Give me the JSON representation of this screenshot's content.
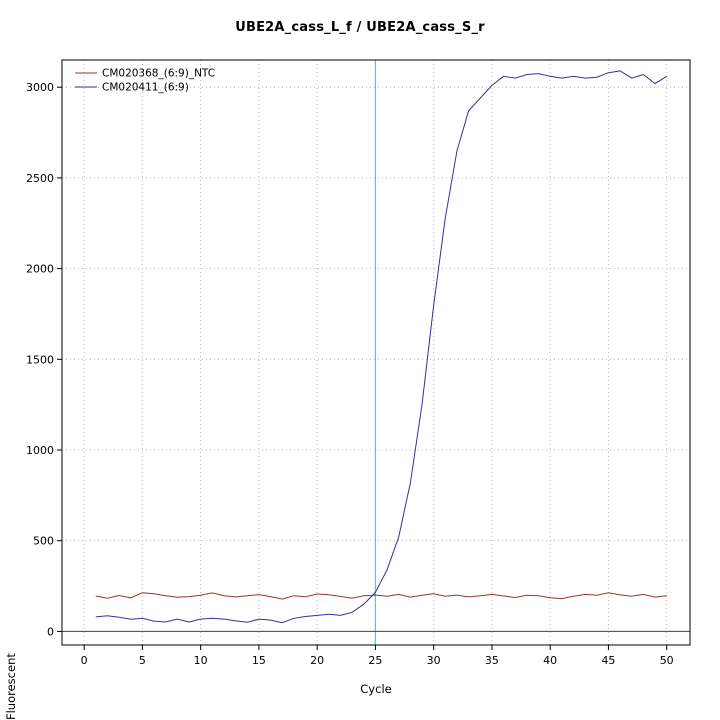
{
  "chart_data": {
    "type": "line",
    "title": "UBE2A_cass_L_f / UBE2A_cass_S_r",
    "xlabel": "Cycle",
    "ylabel": "Fluorescent",
    "grid": "dotted",
    "legend_position": "top-left",
    "xlim": [
      -1.9,
      52
    ],
    "ylim": [
      -75,
      3150
    ],
    "x_ticks": [
      0,
      5,
      10,
      15,
      20,
      25,
      30,
      35,
      40,
      45,
      50
    ],
    "y_ticks": [
      0,
      500,
      1000,
      1500,
      2000,
      2500,
      3000
    ],
    "x": [
      1,
      2,
      3,
      4,
      5,
      6,
      7,
      8,
      9,
      10,
      11,
      12,
      13,
      14,
      15,
      16,
      17,
      18,
      19,
      20,
      21,
      22,
      23,
      24,
      25,
      26,
      27,
      28,
      29,
      30,
      31,
      32,
      33,
      34,
      35,
      36,
      37,
      38,
      39,
      40,
      41,
      42,
      43,
      44,
      45,
      46,
      47,
      48,
      49,
      50
    ],
    "series": [
      {
        "name": "CM020368_(6:9)_NTC",
        "color": "#993333",
        "values": [
          195,
          183,
          198,
          185,
          213,
          208,
          197,
          188,
          192,
          199,
          212,
          197,
          190,
          196,
          203,
          192,
          178,
          197,
          191,
          206,
          202,
          193,
          183,
          197,
          200,
          194,
          204,
          189,
          199,
          207,
          194,
          200,
          190,
          197,
          204,
          195,
          187,
          199,
          196,
          185,
          181,
          194,
          204,
          199,
          213,
          201,
          194,
          204,
          189,
          196
        ]
      },
      {
        "name": "CM020411_(6:9)",
        "color": "#333399",
        "values": [
          80,
          86,
          78,
          67,
          72,
          57,
          52,
          67,
          52,
          68,
          73,
          68,
          58,
          50,
          68,
          62,
          48,
          72,
          82,
          88,
          95,
          88,
          105,
          150,
          215,
          340,
          520,
          820,
          1250,
          1800,
          2280,
          2650,
          2870,
          2940,
          3010,
          3060,
          3050,
          3070,
          3075,
          3060,
          3050,
          3060,
          3050,
          3055,
          3080,
          3090,
          3050,
          3070,
          3020,
          3060
        ]
      }
    ],
    "baseline_line": {
      "orientation": "horizontal",
      "y": 0,
      "color": "#8b2222"
    },
    "ct_line": {
      "orientation": "vertical",
      "x": 25,
      "color": "#00eeee"
    },
    "grid_color": "#b8b8b8",
    "axis_color": "#000000"
  }
}
